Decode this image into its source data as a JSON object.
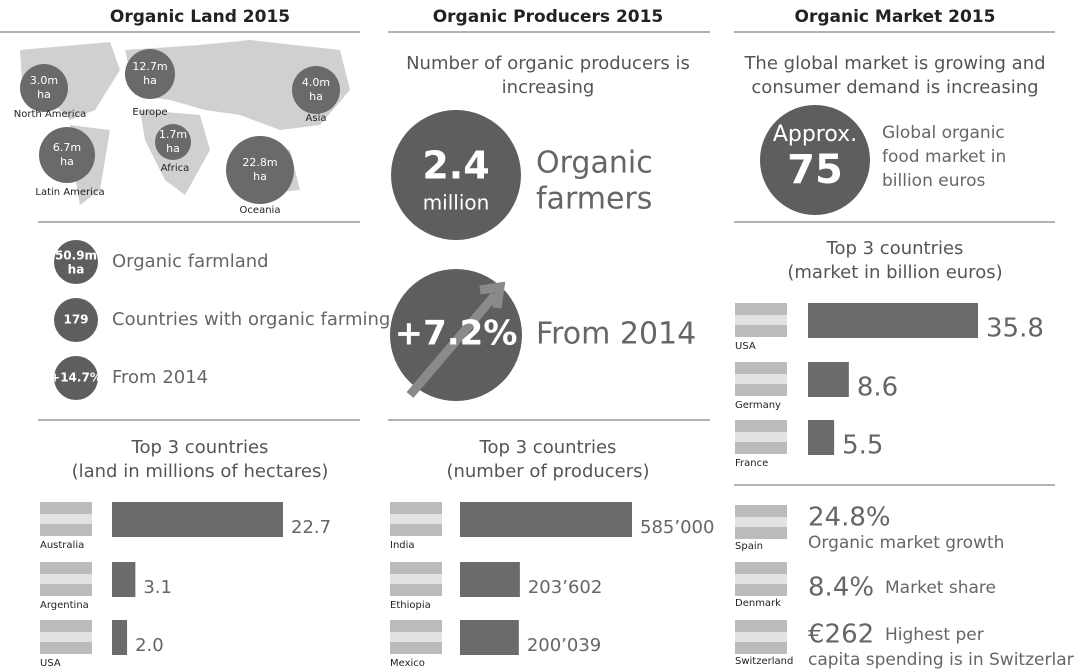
{
  "land": {
    "title": "Organic Land 2015",
    "regions": [
      {
        "amount": "3.0m",
        "unit": "ha",
        "name": "North America"
      },
      {
        "amount": "12.7m",
        "unit": "ha",
        "name": "Europe"
      },
      {
        "amount": "4.0m",
        "unit": "ha",
        "name": "Asia"
      },
      {
        "amount": "6.7m",
        "unit": "ha",
        "name": "Latin America"
      },
      {
        "amount": "1.7m",
        "unit": "ha",
        "name": "Africa"
      },
      {
        "amount": "22.8m",
        "unit": "ha",
        "name": "Oceania"
      }
    ],
    "stats": [
      {
        "badge": [
          "50.9m",
          "ha"
        ],
        "text": "Organic farmland"
      },
      {
        "badge": [
          "179"
        ],
        "text": "Countries with organic farming"
      },
      {
        "badge": [
          "+14.7%"
        ],
        "text": "From 2014"
      }
    ],
    "top": {
      "title": "Top 3 countries",
      "subtitle": "(land in millions of hectares)",
      "countries": [
        "Australia",
        "Argentina",
        "USA"
      ],
      "values": [
        22.7,
        3.1,
        2.0
      ],
      "value_labels": [
        "22.7",
        "3.1",
        "2.0"
      ]
    }
  },
  "producers": {
    "title": "Organic Producers 2015",
    "intro": [
      "Number of organic producers is",
      "increasing"
    ],
    "farmers": {
      "number": "2.4",
      "unit": "million",
      "text": [
        "Organic",
        "farmers"
      ]
    },
    "growth": {
      "number": "+7.2%",
      "text": "From 2014"
    },
    "top": {
      "title": "Top 3 countries",
      "subtitle": "(number of producers)",
      "countries": [
        "India",
        "Ethiopia",
        "Mexico"
      ],
      "values": [
        585000,
        203602,
        200039
      ],
      "value_labels": [
        "585’000",
        "203’602",
        "200’039"
      ]
    }
  },
  "market": {
    "title": "Organic Market 2015",
    "intro": [
      "The global market is growing and",
      "consumer demand is increasing"
    ],
    "size": {
      "prefix": "Approx.",
      "number": "75",
      "text": [
        "Global organic",
        "food market in",
        "billion euros"
      ]
    },
    "top": {
      "title": "Top 3 countries",
      "subtitle": "(market in billion euros)",
      "countries": [
        "USA",
        "Germany",
        "France"
      ],
      "values": [
        35.8,
        8.6,
        5.5
      ]
    },
    "facts": [
      {
        "country": "Spain",
        "figure": "24.8%",
        "text": [
          "Organic market growth"
        ]
      },
      {
        "country": "Denmark",
        "figure": "8.4%",
        "text": [
          "Market share"
        ]
      },
      {
        "country": "Switzerland",
        "figure": "€262",
        "text": [
          "Highest per",
          "capita spending is in Switzerland"
        ]
      }
    ]
  }
}
